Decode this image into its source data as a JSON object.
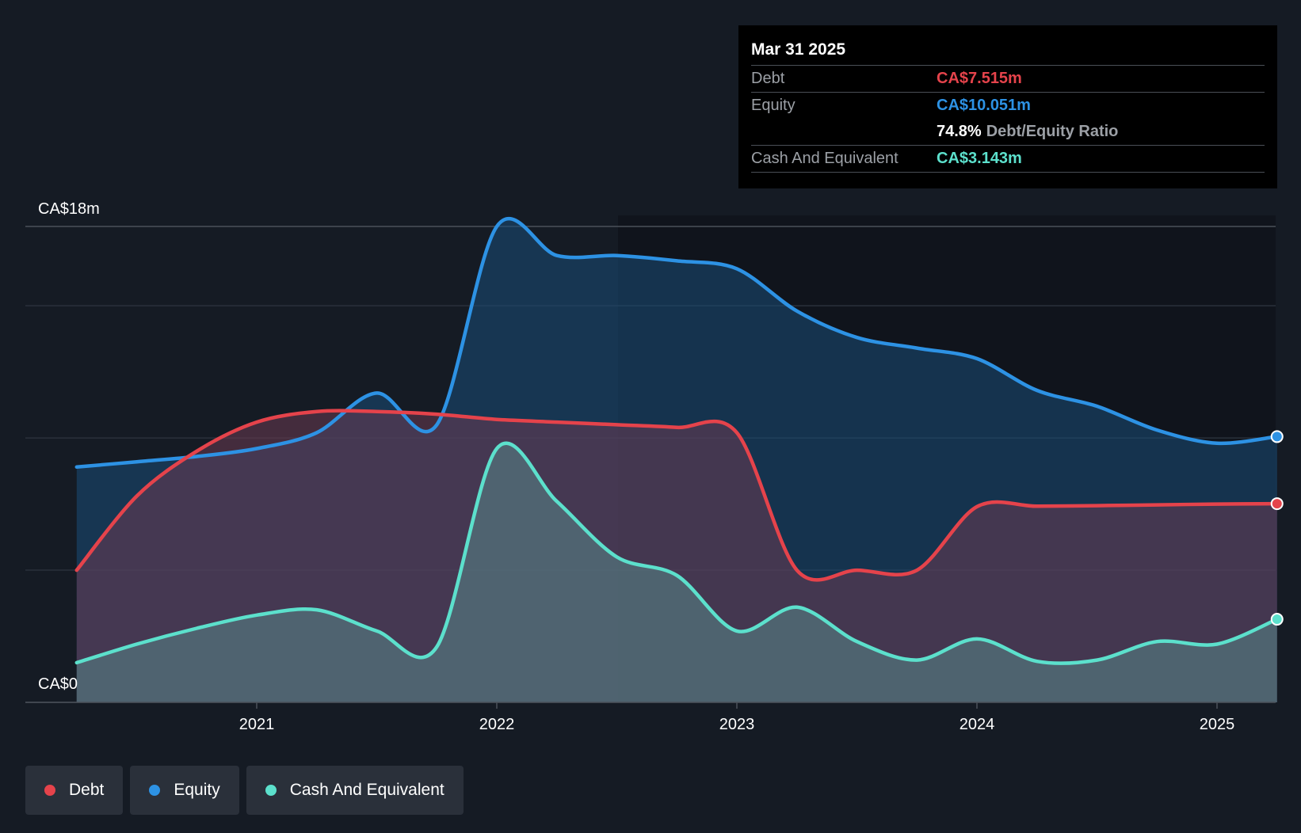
{
  "tooltip": {
    "date": "Mar 31 2025",
    "debt_label": "Debt",
    "debt_value": "CA$7.515m",
    "equity_label": "Equity",
    "equity_value": "CA$10.051m",
    "ratio_value": "74.8%",
    "ratio_label": "Debt/Equity Ratio",
    "cash_label": "Cash And Equivalent",
    "cash_value": "CA$3.143m"
  },
  "legend": {
    "debt": "Debt",
    "equity": "Equity",
    "cash": "Cash And Equivalent"
  },
  "colors": {
    "debt": "#e5434b",
    "equity": "#2d92e4",
    "cash": "#5ce0cc",
    "background": "#151b24"
  },
  "chart_data": {
    "type": "area",
    "title": "",
    "xlabel": "",
    "ylabel": "",
    "ylim": [
      0,
      18
    ],
    "y_unit": "CA$m",
    "y_tick_labels": [
      "CA$0",
      "CA$18m"
    ],
    "x_ticks": [
      2021,
      2022,
      2023,
      2024,
      2025
    ],
    "x_tick_labels": [
      "2021",
      "2022",
      "2023",
      "2024",
      "2025"
    ],
    "grid": true,
    "legend_position": "bottom-left",
    "series": [
      {
        "name": "Debt",
        "color": "#e5434b",
        "points": [
          [
            2020.25,
            5.0
          ],
          [
            2020.5,
            7.8
          ],
          [
            2020.75,
            9.5
          ],
          [
            2021.0,
            10.6
          ],
          [
            2021.25,
            11.0
          ],
          [
            2021.5,
            11.0
          ],
          [
            2021.75,
            10.9
          ],
          [
            2022.0,
            10.7
          ],
          [
            2022.25,
            10.6
          ],
          [
            2022.5,
            10.5
          ],
          [
            2022.75,
            10.4
          ],
          [
            2023.0,
            10.2
          ],
          [
            2023.25,
            5.0
          ],
          [
            2023.5,
            5.0
          ],
          [
            2023.75,
            5.0
          ],
          [
            2024.0,
            7.4
          ],
          [
            2024.25,
            7.42
          ],
          [
            2024.5,
            7.44
          ],
          [
            2024.75,
            7.47
          ],
          [
            2025.0,
            7.5
          ],
          [
            2025.25,
            7.515
          ]
        ]
      },
      {
        "name": "Equity",
        "color": "#2d92e4",
        "points": [
          [
            2020.25,
            8.9
          ],
          [
            2020.5,
            9.1
          ],
          [
            2020.75,
            9.3
          ],
          [
            2021.0,
            9.6
          ],
          [
            2021.25,
            10.2
          ],
          [
            2021.5,
            11.7
          ],
          [
            2021.75,
            10.5
          ],
          [
            2022.0,
            18.0
          ],
          [
            2022.25,
            16.9
          ],
          [
            2022.5,
            16.9
          ],
          [
            2022.75,
            16.7
          ],
          [
            2023.0,
            16.4
          ],
          [
            2023.25,
            14.8
          ],
          [
            2023.5,
            13.8
          ],
          [
            2023.75,
            13.4
          ],
          [
            2024.0,
            13.0
          ],
          [
            2024.25,
            11.8
          ],
          [
            2024.5,
            11.2
          ],
          [
            2024.75,
            10.3
          ],
          [
            2025.0,
            9.8
          ],
          [
            2025.25,
            10.051
          ]
        ]
      },
      {
        "name": "Cash And Equivalent",
        "color": "#5ce0cc",
        "points": [
          [
            2020.25,
            1.5
          ],
          [
            2020.5,
            2.2
          ],
          [
            2020.75,
            2.8
          ],
          [
            2021.0,
            3.3
          ],
          [
            2021.25,
            3.5
          ],
          [
            2021.5,
            2.7
          ],
          [
            2021.75,
            2.1
          ],
          [
            2022.0,
            9.6
          ],
          [
            2022.25,
            7.6
          ],
          [
            2022.5,
            5.5
          ],
          [
            2022.75,
            4.8
          ],
          [
            2023.0,
            2.7
          ],
          [
            2023.25,
            3.6
          ],
          [
            2023.5,
            2.3
          ],
          [
            2023.75,
            1.6
          ],
          [
            2024.0,
            2.4
          ],
          [
            2024.25,
            1.55
          ],
          [
            2024.5,
            1.6
          ],
          [
            2024.75,
            2.3
          ],
          [
            2025.0,
            2.2
          ],
          [
            2025.25,
            3.143
          ]
        ]
      }
    ]
  }
}
